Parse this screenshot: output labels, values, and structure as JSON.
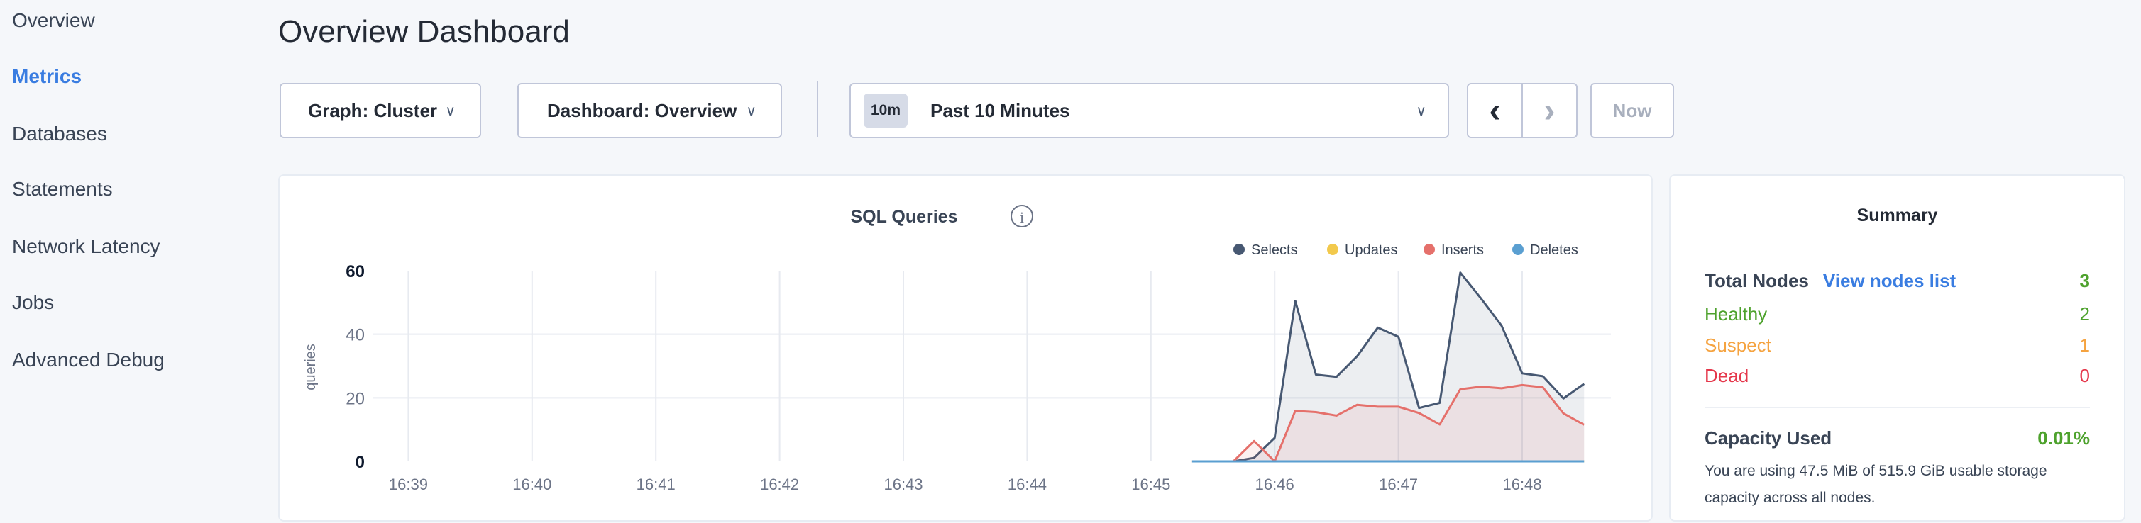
{
  "sidebar": {
    "items": [
      {
        "label": "Overview"
      },
      {
        "label": "Metrics",
        "active": true
      },
      {
        "label": "Databases"
      },
      {
        "label": "Statements"
      },
      {
        "label": "Network Latency"
      },
      {
        "label": "Jobs"
      },
      {
        "label": "Advanced Debug"
      }
    ]
  },
  "header": {
    "title": "Overview Dashboard"
  },
  "toolbar": {
    "graph": "Graph: Cluster",
    "dashboard": "Dashboard: Overview",
    "time_badge": "10m",
    "time_range": "Past 10 Minutes",
    "prev": "‹",
    "next": "›",
    "now": "Now"
  },
  "chart_panel": {
    "title": "SQL Queries",
    "info_icon": "info-circle-icon"
  },
  "chart_data": {
    "type": "area",
    "title": "SQL Queries",
    "ylabel": "queries",
    "xlabel": "",
    "ylim": [
      0,
      60
    ],
    "yticks": [
      "0",
      "20",
      "40",
      "60"
    ],
    "xticks": [
      "16:39",
      "16:40",
      "16:41",
      "16:42",
      "16:43",
      "16:44",
      "16:45",
      "16:46",
      "16:47",
      "16:48"
    ],
    "xlim": [
      "16:38:43",
      "16:48:43"
    ],
    "grid": true,
    "legend": "top-right",
    "x": [
      "16:45:20",
      "16:45:30",
      "16:45:40",
      "16:45:50",
      "16:46:00",
      "16:46:10",
      "16:46:20",
      "16:46:30",
      "16:46:40",
      "16:46:50",
      "16:47:00",
      "16:47:10",
      "16:47:20",
      "16:47:30",
      "16:47:40",
      "16:47:50",
      "16:48:00",
      "16:48:10",
      "16:48:20",
      "16:48:30"
    ],
    "series": [
      {
        "name": "Selects",
        "color": "#475872",
        "values": [
          0,
          0,
          0,
          1.1,
          7.4,
          50.5,
          27.3,
          26.6,
          33.1,
          42.1,
          39.2,
          16.8,
          18.4,
          59.4,
          51.3,
          42.7,
          27.7,
          26.8,
          19.8,
          24.4
        ]
      },
      {
        "name": "Updates",
        "color": "#f2c94c",
        "values": [
          0,
          0,
          0,
          0,
          0,
          0,
          0,
          0,
          0,
          0,
          0,
          0,
          0,
          0,
          0,
          0,
          0,
          0,
          0,
          0
        ]
      },
      {
        "name": "Inserts",
        "color": "#e5706b",
        "values": [
          0,
          0,
          0,
          6.4,
          0,
          15.9,
          15.5,
          14.4,
          17.8,
          17.2,
          17.2,
          15.2,
          11.6,
          22.7,
          23.5,
          23.0,
          24.0,
          23.3,
          15.1,
          11.5
        ]
      },
      {
        "name": "Deletes",
        "color": "#5a9fd1",
        "values": [
          0,
          0,
          0,
          0,
          0,
          0,
          0,
          0,
          0,
          0,
          0,
          0,
          0,
          0,
          0,
          0,
          0,
          0,
          0,
          0
        ]
      }
    ]
  },
  "summary": {
    "title": "Summary",
    "total_nodes_label": "Total Nodes",
    "view_nodes_link": "View nodes list",
    "total_nodes": "3",
    "healthy_label": "Healthy",
    "healthy": "2",
    "suspect_label": "Suspect",
    "suspect": "1",
    "dead_label": "Dead",
    "dead": "0",
    "capacity_label": "Capacity Used",
    "capacity": "0.01%",
    "capacity_text": "You are using 47.5 MiB of 515.9 GiB usable storage capacity across all nodes.",
    "colors": {
      "healthy": "#4ea22d",
      "suspect": "#f5a340",
      "dead": "#e5374b",
      "link": "#3a7de1"
    }
  }
}
